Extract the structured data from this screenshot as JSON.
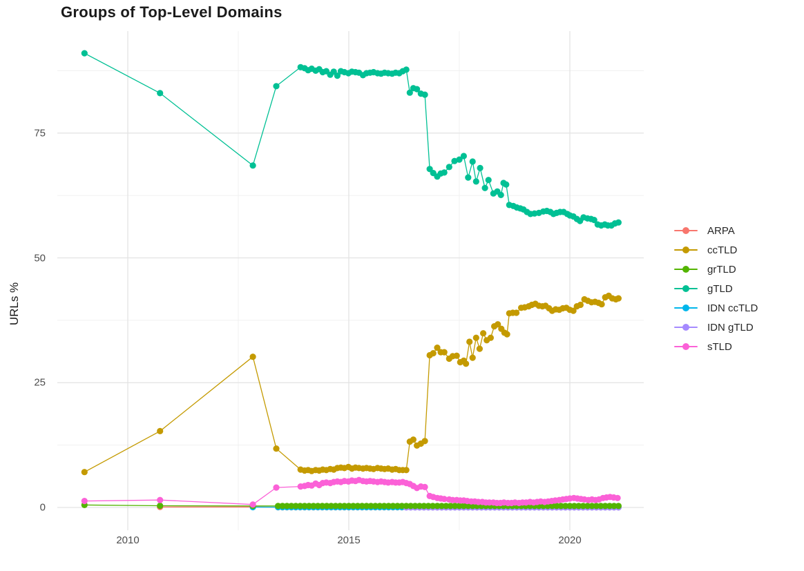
{
  "title": "Groups of Top-Level Domains",
  "y_axis": {
    "title": "URLs %",
    "ticks": [
      0,
      25,
      50,
      75
    ],
    "minor_ticks": [
      12.5,
      37.5,
      62.5,
      87.5
    ]
  },
  "x_axis": {
    "ticks": [
      2010,
      2015,
      2020
    ],
    "minor_ticks": [
      2012.5,
      2017.5
    ]
  },
  "colors": {
    "grid_major": "#e3e3e3",
    "grid_minor": "#f0f0f0",
    "tick_text": "#4d4d4d",
    "title_text": "#1a1a1a"
  },
  "chart_data": {
    "type": "line",
    "title": "Groups of Top-Level Domains",
    "xlabel": "",
    "ylabel": "URLs %",
    "xlim": [
      2008.4,
      2021.7
    ],
    "ylim": [
      -1,
      95
    ],
    "grid": "on",
    "legend_position": "right",
    "draw_order": [
      "ARPA",
      "IDN ccTLD",
      "IDN gTLD",
      "grTLD",
      "ccTLD",
      "gTLD",
      "sTLD"
    ],
    "series": [
      {
        "name": "ARPA",
        "color": "#F8766D",
        "points": [
          [
            2010.73,
            0.1
          ],
          [
            2012.83,
            0.1
          ]
        ],
        "run": {
          "from": 2013.4,
          "to": 2021.1,
          "step": 0.1,
          "value": 0.05
        }
      },
      {
        "name": "ccTLD",
        "color": "#C49A00",
        "points": [
          [
            2009.02,
            7.1
          ],
          [
            2010.73,
            15.3
          ],
          [
            2012.83,
            30.2
          ],
          [
            2013.36,
            11.8
          ],
          [
            2013.91,
            7.6
          ],
          [
            2014.0,
            7.4
          ],
          [
            2014.08,
            7.5
          ],
          [
            2014.16,
            7.3
          ],
          [
            2014.25,
            7.5
          ],
          [
            2014.33,
            7.4
          ],
          [
            2014.41,
            7.6
          ],
          [
            2014.49,
            7.5
          ],
          [
            2014.58,
            7.7
          ],
          [
            2014.66,
            7.6
          ],
          [
            2014.74,
            7.9
          ],
          [
            2014.82,
            8.0
          ],
          [
            2014.9,
            7.9
          ],
          [
            2014.99,
            8.1
          ],
          [
            2015.07,
            7.8
          ],
          [
            2015.15,
            8.0
          ],
          [
            2015.23,
            7.9
          ],
          [
            2015.32,
            7.8
          ],
          [
            2015.4,
            7.9
          ],
          [
            2015.48,
            7.8
          ],
          [
            2015.56,
            7.7
          ],
          [
            2015.65,
            7.9
          ],
          [
            2015.73,
            7.8
          ],
          [
            2015.81,
            7.7
          ],
          [
            2015.89,
            7.8
          ],
          [
            2015.98,
            7.6
          ],
          [
            2016.06,
            7.7
          ],
          [
            2016.14,
            7.5
          ],
          [
            2016.22,
            7.5
          ],
          [
            2016.3,
            7.5
          ],
          [
            2016.38,
            13.2
          ],
          [
            2016.46,
            13.6
          ],
          [
            2016.54,
            12.4
          ],
          [
            2016.63,
            12.8
          ],
          [
            2016.72,
            13.3
          ],
          [
            2016.83,
            30.5
          ],
          [
            2016.91,
            30.9
          ],
          [
            2017.0,
            32.0
          ],
          [
            2017.08,
            31.1
          ],
          [
            2017.16,
            31.1
          ],
          [
            2017.27,
            29.8
          ],
          [
            2017.35,
            30.3
          ],
          [
            2017.44,
            30.4
          ],
          [
            2017.52,
            29.1
          ],
          [
            2017.6,
            29.4
          ],
          [
            2017.65,
            28.8
          ],
          [
            2017.73,
            33.2
          ],
          [
            2017.8,
            30.0
          ],
          [
            2017.88,
            34.0
          ],
          [
            2017.96,
            31.8
          ],
          [
            2018.04,
            34.9
          ],
          [
            2018.12,
            33.5
          ],
          [
            2018.21,
            34.0
          ],
          [
            2018.29,
            36.3
          ],
          [
            2018.37,
            36.7
          ],
          [
            2018.45,
            35.8
          ],
          [
            2018.52,
            35.0
          ],
          [
            2018.58,
            34.7
          ],
          [
            2018.63,
            38.9
          ],
          [
            2018.71,
            39.0
          ],
          [
            2018.79,
            39.0
          ],
          [
            2018.9,
            40.0
          ],
          [
            2018.98,
            40.1
          ],
          [
            2019.07,
            40.3
          ],
          [
            2019.14,
            40.6
          ],
          [
            2019.22,
            40.8
          ],
          [
            2019.3,
            40.4
          ],
          [
            2019.38,
            40.3
          ],
          [
            2019.45,
            40.4
          ],
          [
            2019.53,
            39.9
          ],
          [
            2019.6,
            39.4
          ],
          [
            2019.68,
            39.7
          ],
          [
            2019.76,
            39.6
          ],
          [
            2019.84,
            39.9
          ],
          [
            2019.92,
            40.0
          ],
          [
            2020.0,
            39.6
          ],
          [
            2020.08,
            39.4
          ],
          [
            2020.16,
            40.3
          ],
          [
            2020.24,
            40.6
          ],
          [
            2020.33,
            41.7
          ],
          [
            2020.41,
            41.4
          ],
          [
            2020.49,
            41.1
          ],
          [
            2020.57,
            41.2
          ],
          [
            2020.65,
            41.0
          ],
          [
            2020.72,
            40.7
          ],
          [
            2020.8,
            42.1
          ],
          [
            2020.88,
            42.4
          ],
          [
            2020.96,
            41.9
          ],
          [
            2021.04,
            41.7
          ],
          [
            2021.1,
            41.9
          ]
        ]
      },
      {
        "name": "grTLD",
        "color": "#53B400",
        "points": [
          [
            2009.02,
            0.5
          ],
          [
            2010.73,
            0.35
          ],
          [
            2012.83,
            0.3
          ]
        ],
        "run": {
          "from": 2013.4,
          "to": 2021.1,
          "step": 0.1,
          "value": 0.3
        }
      },
      {
        "name": "gTLD",
        "color": "#00C094",
        "points": [
          [
            2009.02,
            91
          ],
          [
            2010.73,
            83
          ],
          [
            2012.83,
            68.5
          ],
          [
            2013.36,
            84.4
          ],
          [
            2013.91,
            88.2
          ],
          [
            2014.0,
            88.0
          ],
          [
            2014.08,
            87.6
          ],
          [
            2014.16,
            87.9
          ],
          [
            2014.25,
            87.5
          ],
          [
            2014.33,
            87.8
          ],
          [
            2014.41,
            87.2
          ],
          [
            2014.49,
            87.4
          ],
          [
            2014.58,
            86.7
          ],
          [
            2014.66,
            87.3
          ],
          [
            2014.74,
            86.5
          ],
          [
            2014.82,
            87.4
          ],
          [
            2014.9,
            87.2
          ],
          [
            2014.99,
            87.0
          ],
          [
            2015.07,
            87.3
          ],
          [
            2015.15,
            87.2
          ],
          [
            2015.23,
            87.1
          ],
          [
            2015.32,
            86.6
          ],
          [
            2015.4,
            87.0
          ],
          [
            2015.48,
            87.1
          ],
          [
            2015.56,
            87.2
          ],
          [
            2015.65,
            87.0
          ],
          [
            2015.73,
            86.9
          ],
          [
            2015.81,
            87.1
          ],
          [
            2015.89,
            87.0
          ],
          [
            2015.98,
            86.9
          ],
          [
            2016.06,
            87.1
          ],
          [
            2016.14,
            87.0
          ],
          [
            2016.22,
            87.4
          ],
          [
            2016.3,
            87.7
          ],
          [
            2016.38,
            83.1
          ],
          [
            2016.46,
            84.0
          ],
          [
            2016.54,
            83.8
          ],
          [
            2016.63,
            82.9
          ],
          [
            2016.72,
            82.7
          ],
          [
            2016.83,
            67.8
          ],
          [
            2016.91,
            67.0
          ],
          [
            2017.0,
            66.3
          ],
          [
            2017.08,
            66.9
          ],
          [
            2017.16,
            67.1
          ],
          [
            2017.27,
            68.2
          ],
          [
            2017.39,
            69.4
          ],
          [
            2017.5,
            69.7
          ],
          [
            2017.6,
            70.4
          ],
          [
            2017.7,
            66.1
          ],
          [
            2017.8,
            69.3
          ],
          [
            2017.88,
            65.3
          ],
          [
            2017.97,
            68.0
          ],
          [
            2018.08,
            64.0
          ],
          [
            2018.16,
            65.6
          ],
          [
            2018.27,
            62.9
          ],
          [
            2018.36,
            63.3
          ],
          [
            2018.44,
            62.6
          ],
          [
            2018.5,
            65.0
          ],
          [
            2018.56,
            64.7
          ],
          [
            2018.63,
            60.6
          ],
          [
            2018.72,
            60.4
          ],
          [
            2018.8,
            60.1
          ],
          [
            2018.88,
            59.9
          ],
          [
            2018.95,
            59.7
          ],
          [
            2019.03,
            59.2
          ],
          [
            2019.11,
            58.8
          ],
          [
            2019.2,
            58.9
          ],
          [
            2019.3,
            59.0
          ],
          [
            2019.4,
            59.3
          ],
          [
            2019.48,
            59.4
          ],
          [
            2019.56,
            59.2
          ],
          [
            2019.63,
            58.8
          ],
          [
            2019.7,
            59.0
          ],
          [
            2019.78,
            59.2
          ],
          [
            2019.86,
            59.2
          ],
          [
            2019.94,
            58.8
          ],
          [
            2020.0,
            58.5
          ],
          [
            2020.08,
            58.3
          ],
          [
            2020.16,
            57.8
          ],
          [
            2020.23,
            57.4
          ],
          [
            2020.31,
            58.1
          ],
          [
            2020.4,
            57.9
          ],
          [
            2020.48,
            57.8
          ],
          [
            2020.55,
            57.6
          ],
          [
            2020.63,
            56.7
          ],
          [
            2020.71,
            56.5
          ],
          [
            2020.79,
            56.7
          ],
          [
            2020.86,
            56.5
          ],
          [
            2020.94,
            56.5
          ],
          [
            2021.02,
            56.9
          ],
          [
            2021.1,
            57.1
          ]
        ]
      },
      {
        "name": "IDN ccTLD",
        "color": "#00B6EB",
        "points": [
          [
            2012.83,
            0.07
          ]
        ],
        "run": {
          "from": 2013.4,
          "to": 2021.1,
          "step": 0.1,
          "value": 0.07
        }
      },
      {
        "name": "IDN gTLD",
        "color": "#A58AFF",
        "points": [],
        "run": {
          "from": 2016.3,
          "to": 2021.1,
          "step": 0.1,
          "value": 0.02
        }
      },
      {
        "name": "sTLD",
        "color": "#FB61D7",
        "points": [
          [
            2009.02,
            1.3
          ],
          [
            2010.73,
            1.5
          ],
          [
            2012.83,
            0.6
          ],
          [
            2013.36,
            4.0
          ],
          [
            2013.91,
            4.2
          ],
          [
            2014.0,
            4.3
          ],
          [
            2014.08,
            4.5
          ],
          [
            2014.16,
            4.4
          ],
          [
            2014.25,
            4.8
          ],
          [
            2014.33,
            4.5
          ],
          [
            2014.41,
            4.9
          ],
          [
            2014.49,
            5.0
          ],
          [
            2014.58,
            4.9
          ],
          [
            2014.66,
            5.1
          ],
          [
            2014.74,
            5.2
          ],
          [
            2014.82,
            5.1
          ],
          [
            2014.9,
            5.3
          ],
          [
            2014.99,
            5.2
          ],
          [
            2015.07,
            5.4
          ],
          [
            2015.15,
            5.3
          ],
          [
            2015.23,
            5.5
          ],
          [
            2015.32,
            5.3
          ],
          [
            2015.4,
            5.2
          ],
          [
            2015.48,
            5.3
          ],
          [
            2015.56,
            5.2
          ],
          [
            2015.65,
            5.1
          ],
          [
            2015.73,
            5.2
          ],
          [
            2015.81,
            5.1
          ],
          [
            2015.89,
            5.0
          ],
          [
            2015.98,
            5.1
          ],
          [
            2016.06,
            5.0
          ],
          [
            2016.14,
            5.0
          ],
          [
            2016.22,
            5.1
          ],
          [
            2016.3,
            4.9
          ],
          [
            2016.38,
            4.7
          ],
          [
            2016.46,
            4.3
          ],
          [
            2016.54,
            3.9
          ],
          [
            2016.63,
            4.2
          ],
          [
            2016.72,
            4.1
          ],
          [
            2016.83,
            2.3
          ],
          [
            2016.91,
            2.1
          ],
          [
            2017.0,
            1.9
          ],
          [
            2017.08,
            1.8
          ],
          [
            2017.16,
            1.7
          ],
          [
            2017.27,
            1.6
          ],
          [
            2017.35,
            1.5
          ],
          [
            2017.44,
            1.5
          ],
          [
            2017.52,
            1.4
          ],
          [
            2017.6,
            1.4
          ],
          [
            2017.68,
            1.3
          ],
          [
            2017.77,
            1.2
          ],
          [
            2017.85,
            1.2
          ],
          [
            2017.93,
            1.1
          ],
          [
            2018.02,
            1.1
          ],
          [
            2018.1,
            1.0
          ],
          [
            2018.18,
            1.0
          ],
          [
            2018.27,
            1.0
          ],
          [
            2018.35,
            0.9
          ],
          [
            2018.43,
            0.9
          ],
          [
            2018.51,
            1.0
          ],
          [
            2018.6,
            0.9
          ],
          [
            2018.68,
            0.9
          ],
          [
            2018.76,
            1.0
          ],
          [
            2018.85,
            0.9
          ],
          [
            2018.93,
            1.0
          ],
          [
            2019.01,
            1.0
          ],
          [
            2019.1,
            1.1
          ],
          [
            2019.18,
            1.0
          ],
          [
            2019.26,
            1.1
          ],
          [
            2019.34,
            1.2
          ],
          [
            2019.43,
            1.1
          ],
          [
            2019.51,
            1.2
          ],
          [
            2019.59,
            1.3
          ],
          [
            2019.67,
            1.4
          ],
          [
            2019.76,
            1.5
          ],
          [
            2019.84,
            1.6
          ],
          [
            2019.92,
            1.7
          ],
          [
            2020.0,
            1.8
          ],
          [
            2020.09,
            1.9
          ],
          [
            2020.17,
            1.8
          ],
          [
            2020.25,
            1.7
          ],
          [
            2020.33,
            1.6
          ],
          [
            2020.42,
            1.5
          ],
          [
            2020.5,
            1.6
          ],
          [
            2020.58,
            1.5
          ],
          [
            2020.66,
            1.6
          ],
          [
            2020.75,
            1.9
          ],
          [
            2020.83,
            2.0
          ],
          [
            2020.91,
            2.1
          ],
          [
            2020.99,
            2.0
          ],
          [
            2021.08,
            1.9
          ]
        ]
      }
    ]
  }
}
